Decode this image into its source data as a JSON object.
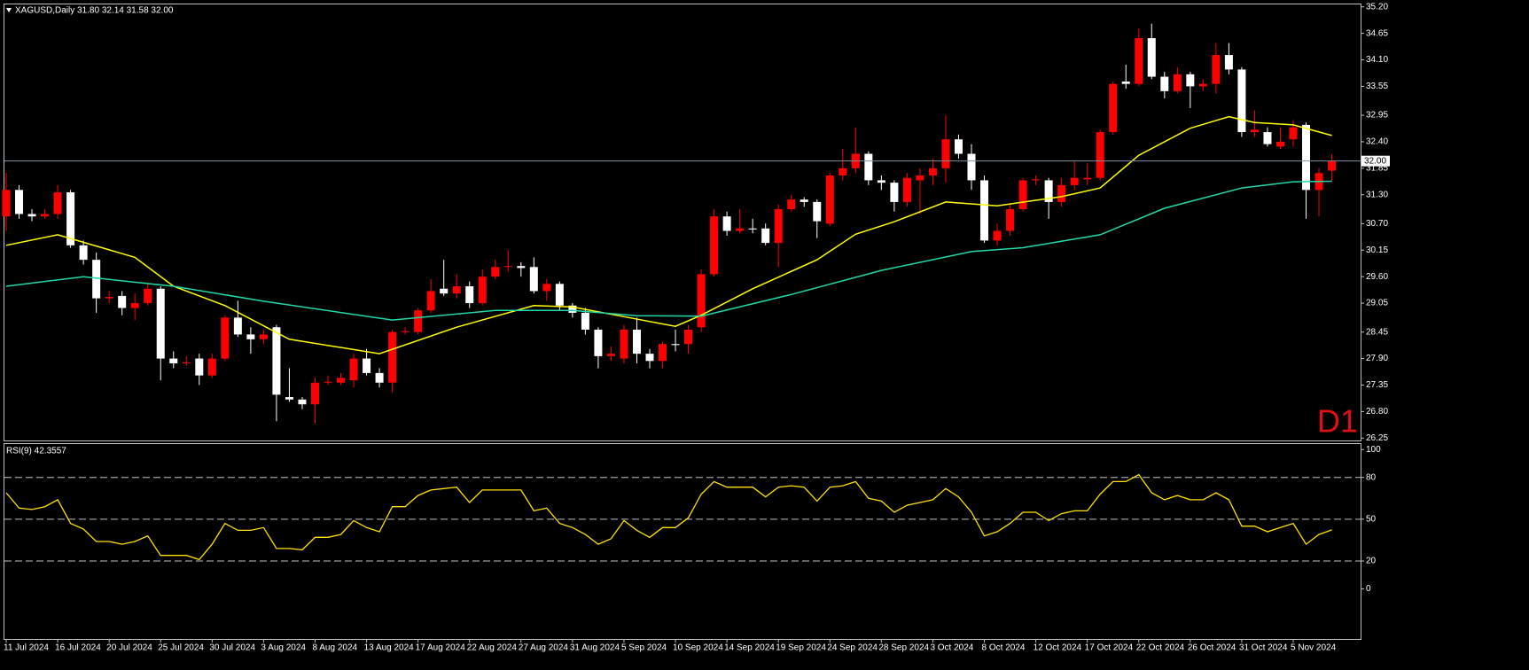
{
  "chart_data": [
    {
      "type": "candlestick",
      "title": "XAGUSD,Daily  31.80 32.14 31.58 32.00",
      "annotation": "D1",
      "categories": [
        "11 Jul 2024",
        null,
        null,
        null,
        "16 Jul 2024",
        null,
        null,
        null,
        "20 Jul 2024",
        null,
        null,
        null,
        "25 Jul 2024",
        null,
        null,
        null,
        "30 Jul 2024",
        null,
        null,
        null,
        "3 Aug 2024",
        null,
        null,
        null,
        "8 Aug 2024",
        null,
        null,
        null,
        "13 Aug 2024",
        null,
        null,
        null,
        "17 Aug 2024",
        null,
        null,
        null,
        "22 Aug 2024",
        null,
        null,
        null,
        "27 Aug 2024",
        null,
        null,
        null,
        "31 Aug 2024",
        null,
        null,
        null,
        "5 Sep 2024",
        null,
        null,
        null,
        "10 Sep 2024",
        null,
        null,
        null,
        "14 Sep 2024",
        null,
        null,
        null,
        "19 Sep 2024",
        null,
        null,
        null,
        "24 Sep 2024",
        null,
        null,
        null,
        "28 Sep 2024",
        null,
        null,
        null,
        "3 Oct 2024",
        null,
        null,
        null,
        "8 Oct 2024",
        null,
        null,
        null,
        "12 Oct 2024",
        null,
        null,
        null,
        "17 Oct 2024",
        null,
        null,
        null,
        "22 Oct 2024",
        null,
        null,
        null,
        "26 Oct 2024",
        null,
        null,
        null,
        "31 Oct 2024",
        null,
        null,
        null,
        "5 Nov 2024",
        null,
        null,
        null
      ],
      "open": [
        30.85,
        31.4,
        30.9,
        30.85,
        30.9,
        31.35,
        30.25,
        29.95,
        29.15,
        29.2,
        28.95,
        29.05,
        29.35,
        27.9,
        27.8,
        27.9,
        27.55,
        27.9,
        28.75,
        28.4,
        28.3,
        28.55,
        27.1,
        27.05,
        26.95,
        27.4,
        27.4,
        27.45,
        27.9,
        27.6,
        27.4,
        28.45,
        28.45,
        28.9,
        29.35,
        29.25,
        29.4,
        29.05,
        29.6,
        29.8,
        29.82,
        29.8,
        29.3,
        29.45,
        29.0,
        28.85,
        28.5,
        27.95,
        27.9,
        28.5,
        28.0,
        27.85,
        28.2,
        28.2,
        28.55,
        29.65,
        30.85,
        30.55,
        30.6,
        30.6,
        30.3,
        31.0,
        31.2,
        31.15,
        30.7,
        31.7,
        31.85,
        32.15,
        31.6,
        31.55,
        31.15,
        31.6,
        31.7,
        31.85,
        32.45,
        32.15,
        31.6,
        30.35,
        30.55,
        31.0,
        31.6,
        31.6,
        31.15,
        31.5,
        31.62,
        31.65,
        32.6,
        33.65,
        33.6,
        34.55,
        33.75,
        33.45,
        33.8,
        33.55,
        33.6,
        34.2,
        33.9,
        32.6,
        32.6,
        32.3,
        32.45,
        32.75,
        31.4,
        31.8
      ],
      "high": [
        31.75,
        31.5,
        31.0,
        31.0,
        31.5,
        31.4,
        30.35,
        30.1,
        29.3,
        29.3,
        29.25,
        29.45,
        29.4,
        28.05,
        27.95,
        28.0,
        28.0,
        28.8,
        29.1,
        28.55,
        28.5,
        28.6,
        27.7,
        27.1,
        27.5,
        27.55,
        27.6,
        28.0,
        28.1,
        27.7,
        28.5,
        28.55,
        28.95,
        29.55,
        29.95,
        29.65,
        29.5,
        29.75,
        29.95,
        30.15,
        29.9,
        30.0,
        29.55,
        29.5,
        29.05,
        28.95,
        28.55,
        28.15,
        28.6,
        28.75,
        28.1,
        28.25,
        28.5,
        28.6,
        29.75,
        31.0,
        30.95,
        31.0,
        30.8,
        30.7,
        31.1,
        31.3,
        31.25,
        31.2,
        31.75,
        32.25,
        32.7,
        32.2,
        31.7,
        31.6,
        31.75,
        31.85,
        32.05,
        32.95,
        32.55,
        32.35,
        31.7,
        30.7,
        31.1,
        31.65,
        31.7,
        31.65,
        31.65,
        32.0,
        31.95,
        32.65,
        33.65,
        34.0,
        34.75,
        34.85,
        33.85,
        33.95,
        33.85,
        33.7,
        34.45,
        34.45,
        33.95,
        33.05,
        32.7,
        32.7,
        32.85,
        32.8,
        31.85,
        32.14
      ],
      "low": [
        30.55,
        30.8,
        30.75,
        30.8,
        30.8,
        30.2,
        29.85,
        28.85,
        29.05,
        28.8,
        28.7,
        29.0,
        27.45,
        27.7,
        27.75,
        27.35,
        27.5,
        27.85,
        28.35,
        28.0,
        28.2,
        26.6,
        27.0,
        26.85,
        26.55,
        27.35,
        27.35,
        27.3,
        27.55,
        27.3,
        27.2,
        28.4,
        28.4,
        28.85,
        29.2,
        29.15,
        28.95,
        29.0,
        29.55,
        29.7,
        29.6,
        29.25,
        29.1,
        28.9,
        28.75,
        28.4,
        27.7,
        27.85,
        27.8,
        27.8,
        27.7,
        27.7,
        28.05,
        28.0,
        28.45,
        29.6,
        30.45,
        30.5,
        30.5,
        30.25,
        29.8,
        30.95,
        31.05,
        30.4,
        30.65,
        31.6,
        31.75,
        31.5,
        31.4,
        30.95,
        31.05,
        30.9,
        31.5,
        31.55,
        32.05,
        31.4,
        30.3,
        30.25,
        30.45,
        30.95,
        31.5,
        30.8,
        31.05,
        31.4,
        31.5,
        31.6,
        32.55,
        33.5,
        33.55,
        33.7,
        33.3,
        33.4,
        33.1,
        33.45,
        33.4,
        33.8,
        32.5,
        32.5,
        32.3,
        32.25,
        32.3,
        30.8,
        30.85,
        31.58
      ],
      "close": [
        31.4,
        30.9,
        30.85,
        30.9,
        31.35,
        30.25,
        29.95,
        29.15,
        29.18,
        28.95,
        29.05,
        29.35,
        27.9,
        27.8,
        27.82,
        27.55,
        27.9,
        28.75,
        28.4,
        28.3,
        28.4,
        27.15,
        27.05,
        26.95,
        27.4,
        27.42,
        27.5,
        27.9,
        27.6,
        27.4,
        28.45,
        28.47,
        28.9,
        29.3,
        29.25,
        29.4,
        29.05,
        29.6,
        29.8,
        29.82,
        29.78,
        29.3,
        29.45,
        29.0,
        28.85,
        28.5,
        27.95,
        28.0,
        28.5,
        28.0,
        27.85,
        28.2,
        28.18,
        28.5,
        29.65,
        30.85,
        30.55,
        30.6,
        30.58,
        30.3,
        31.0,
        31.2,
        31.15,
        30.75,
        31.7,
        31.85,
        32.15,
        31.6,
        31.55,
        31.15,
        31.65,
        31.7,
        31.85,
        32.45,
        32.15,
        31.6,
        30.35,
        30.55,
        31.0,
        31.6,
        31.62,
        31.15,
        31.5,
        31.65,
        31.65,
        32.6,
        33.6,
        33.6,
        34.55,
        33.75,
        33.45,
        33.8,
        33.55,
        33.6,
        34.2,
        33.9,
        32.6,
        32.65,
        32.35,
        32.4,
        32.7,
        31.4,
        31.75,
        32.0
      ],
      "up_color": "#ff0000",
      "down_color": "#ffffff",
      "lines": [
        {
          "color": "#ffff00",
          "x": [
            0,
            4,
            10,
            13,
            17,
            22,
            29,
            35,
            41,
            44,
            48,
            52,
            54,
            58,
            63,
            66,
            69,
            73,
            77,
            82,
            85,
            88,
            92,
            95,
            97,
            100,
            103
          ],
          "values": [
            30.25,
            30.47,
            30.0,
            29.4,
            29.0,
            28.3,
            28.0,
            28.55,
            29.0,
            28.97,
            28.77,
            28.57,
            28.8,
            29.35,
            29.95,
            30.48,
            30.74,
            31.15,
            31.07,
            31.26,
            31.44,
            32.12,
            32.68,
            32.92,
            32.8,
            32.75,
            32.53
          ]
        },
        {
          "color": "#20d8a8",
          "x": [
            0,
            6,
            13,
            20,
            30,
            38,
            44,
            49,
            54,
            61,
            68,
            75,
            79,
            85,
            90,
            96,
            100,
            103
          ],
          "values": [
            29.4,
            29.6,
            29.4,
            29.09,
            28.7,
            28.9,
            28.9,
            28.79,
            28.78,
            29.23,
            29.73,
            30.12,
            30.2,
            30.47,
            31.02,
            31.44,
            31.57,
            31.58
          ]
        }
      ],
      "current_price": {
        "value": 32.0,
        "label": "32.00"
      },
      "ylim": [
        26.2,
        35.25
      ],
      "yticks": [
        {
          "value": 35.2,
          "label": "35.20"
        },
        {
          "value": 34.65,
          "label": "34.65"
        },
        {
          "value": 34.1,
          "label": "34.10"
        },
        {
          "value": 33.55,
          "label": "33.55"
        },
        {
          "value": 32.95,
          "label": "32.95"
        },
        {
          "value": 32.4,
          "label": "32.40"
        },
        {
          "value": 31.85,
          "label": "31.85"
        },
        {
          "value": 31.3,
          "label": "31.30"
        },
        {
          "value": 30.7,
          "label": "30.70"
        },
        {
          "value": 30.15,
          "label": "30.15"
        },
        {
          "value": 29.6,
          "label": "29.60"
        },
        {
          "value": 29.05,
          "label": "29.05"
        },
        {
          "value": 28.45,
          "label": "28.45"
        },
        {
          "value": 27.9,
          "label": "27.90"
        },
        {
          "value": 27.35,
          "label": "27.35"
        },
        {
          "value": 26.8,
          "label": "26.80"
        },
        {
          "value": 26.25,
          "label": "26.25"
        }
      ]
    },
    {
      "type": "line",
      "title": "RSI(9) 42.3557",
      "color": "#ffe000",
      "values": [
        69,
        58,
        57,
        59,
        64,
        47,
        43,
        34,
        34,
        32,
        34,
        38,
        24,
        24,
        24,
        21,
        32,
        47,
        42,
        42,
        44,
        29,
        29,
        28,
        37,
        37,
        39,
        49,
        44,
        41,
        59,
        59,
        67,
        71,
        72,
        73,
        62,
        71,
        71,
        71,
        71,
        56,
        58,
        47,
        44,
        39,
        32,
        36,
        49,
        42,
        37,
        44,
        44,
        51,
        68,
        77,
        73,
        73,
        73,
        66,
        73,
        74,
        73,
        63,
        73,
        74,
        77,
        65,
        63,
        55,
        60,
        62,
        64,
        72,
        66,
        55,
        38,
        41,
        47,
        55,
        55,
        49,
        54,
        56,
        56,
        68,
        77,
        77,
        82,
        69,
        64,
        67,
        64,
        64,
        69,
        64,
        45,
        45,
        41,
        44,
        47,
        32,
        39,
        42.3557
      ],
      "levels": [
        80,
        50,
        20
      ],
      "ylim": [
        -36,
        104
      ],
      "yticks": [
        100,
        80,
        50,
        20,
        0
      ]
    }
  ]
}
